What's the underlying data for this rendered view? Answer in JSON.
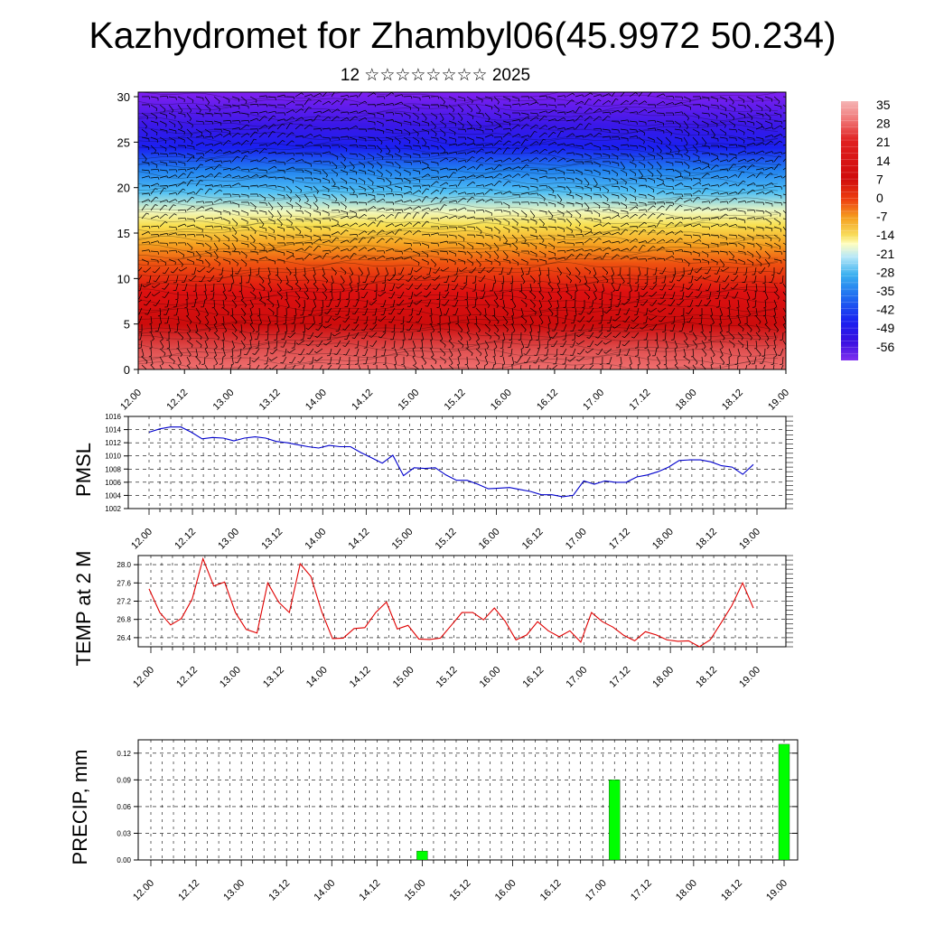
{
  "title": "Kazhydromet for Zhambyl06(45.9972 50.234)",
  "subtitle": "12 ☆☆☆☆☆☆☆☆ 2025",
  "x_ticks": [
    "12.00",
    "12.12",
    "13.00",
    "13.12",
    "14.00",
    "14.12",
    "15.00",
    "15.12",
    "16.00",
    "16.12",
    "17.00",
    "17.12",
    "18.00",
    "18.12",
    "19.00"
  ],
  "chart_data": [
    {
      "type": "heatmap",
      "description_key": "temperature cross-section with wind barbs",
      "x_ticks": [
        "12.00",
        "12.12",
        "13.00",
        "13.12",
        "14.00",
        "14.12",
        "15.00",
        "15.12",
        "16.00",
        "16.12",
        "17.00",
        "17.12",
        "18.00",
        "18.12",
        "19.00"
      ],
      "y_ticks": [
        0,
        5,
        10,
        15,
        20,
        25,
        30
      ],
      "ylim": [
        0,
        30.5
      ],
      "colorbar_labels": [
        "35",
        "28",
        "21",
        "14",
        "7",
        "0",
        "-7",
        "-14",
        "-21",
        "-28",
        "-35",
        "-42",
        "-49",
        "-56"
      ],
      "colorbar_colors": [
        "#f5b5b5",
        "#f07878",
        "#e01818",
        "#d01010",
        "#ea3a10",
        "#f5a020",
        "#f8e060",
        "#fffec0",
        "#b8e8f8",
        "#3ab0f0",
        "#1f6ff0",
        "#1a20f0",
        "#3a10e0",
        "#7a28f0"
      ]
    },
    {
      "type": "line",
      "ylabel": "PMSL",
      "ylim": [
        1002,
        1016
      ],
      "y_ticks": [
        1002,
        1004,
        1006,
        1008,
        1010,
        1012,
        1014,
        1016
      ],
      "color": "#0000cc",
      "values": [
        1013.6,
        1014.1,
        1014.4,
        1014.4,
        1013.6,
        1012.6,
        1012.8,
        1012.7,
        1012.3,
        1012.7,
        1012.9,
        1012.7,
        1012.2,
        1012.0,
        1011.7,
        1011.4,
        1011.2,
        1011.6,
        1011.4,
        1011.4,
        1010.5,
        1009.7,
        1008.9,
        1010.1,
        1007.0,
        1008.2,
        1008.1,
        1008.2,
        1007.1,
        1006.3,
        1006.3,
        1005.7,
        1005.0,
        1005.1,
        1005.2,
        1004.9,
        1004.6,
        1004.1,
        1004.1,
        1003.8,
        1004.0,
        1006.2,
        1005.7,
        1006.2,
        1006.0,
        1006.0,
        1006.8,
        1007.1,
        1007.6,
        1008.3,
        1009.3,
        1009.4,
        1009.4,
        1009.1,
        1008.5,
        1008.3,
        1007.2,
        1008.7
      ]
    },
    {
      "type": "line",
      "ylabel": "TEMP at 2 M",
      "ylim": [
        26.2,
        28.2
      ],
      "y_ticks": [
        "26.4",
        "26.8",
        "27.2",
        "27.6",
        "28.0"
      ],
      "color": "#e00000",
      "values": [
        27.47,
        26.95,
        26.68,
        26.82,
        27.25,
        28.13,
        27.53,
        27.62,
        26.95,
        26.58,
        26.5,
        27.6,
        27.18,
        26.95,
        28.02,
        27.74,
        26.97,
        26.38,
        26.39,
        26.6,
        26.62,
        26.95,
        27.18,
        26.59,
        26.67,
        26.37,
        26.36,
        26.39,
        26.67,
        26.95,
        26.95,
        26.79,
        27.05,
        26.76,
        26.35,
        26.46,
        26.75,
        26.55,
        26.42,
        26.55,
        26.3,
        26.95,
        26.75,
        26.63,
        26.45,
        26.33,
        26.53,
        26.46,
        26.35,
        26.32,
        26.33,
        26.2,
        26.35,
        26.72,
        27.1,
        27.6,
        27.05
      ]
    },
    {
      "type": "bar",
      "ylabel": "PRECIP, mm",
      "ylim": [
        0,
        0.135
      ],
      "y_ticks": [
        "0.00",
        "0.03",
        "0.06",
        "0.09",
        "0.12"
      ],
      "color": "#00ff00",
      "bars": [
        {
          "x_hours": 72,
          "value": 0.01
        },
        {
          "x_hours": 123,
          "value": 0.09
        },
        {
          "x_hours": 168,
          "value": 0.13
        }
      ],
      "x_range_hours": [
        0,
        168
      ]
    }
  ]
}
